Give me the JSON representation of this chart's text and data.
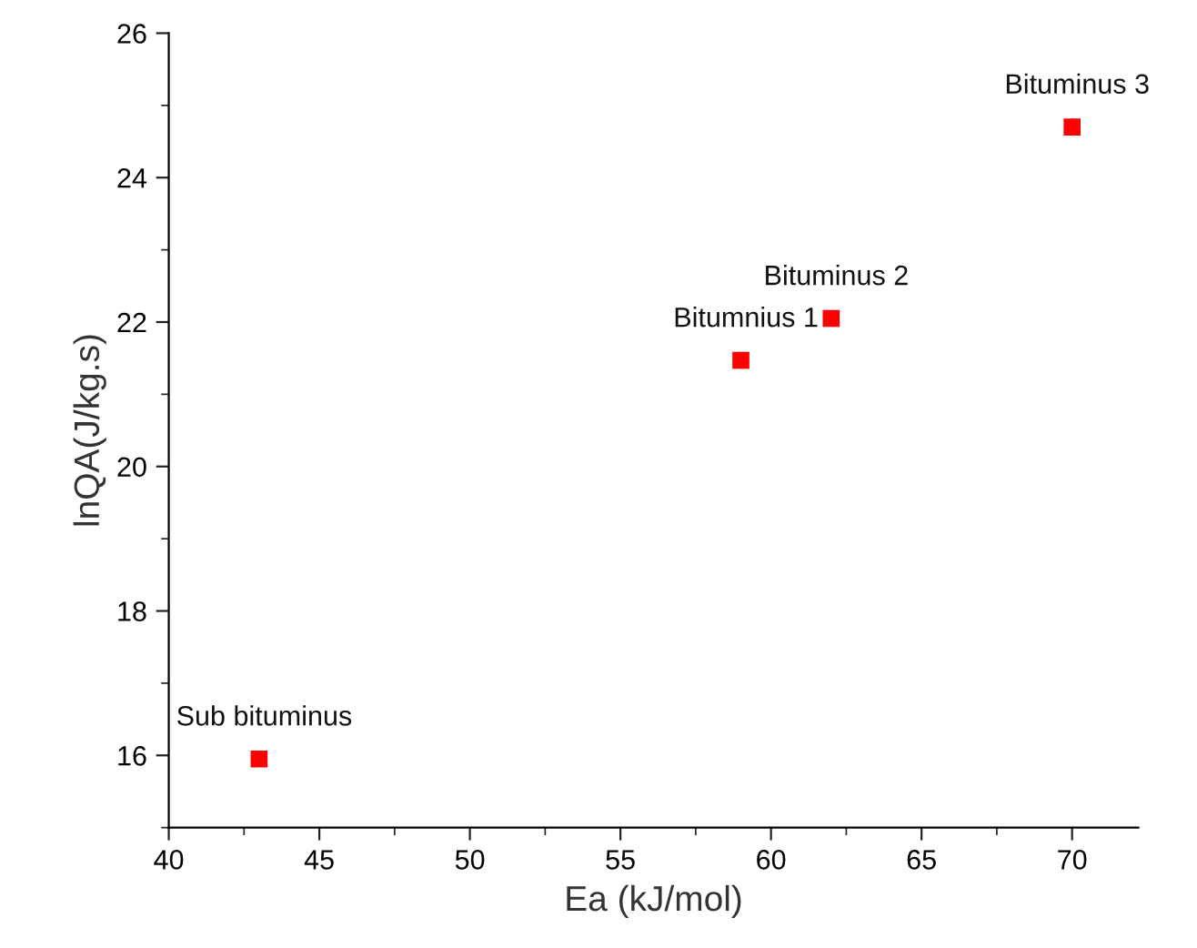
{
  "chart_data": {
    "type": "scatter",
    "xlabel": "Ea (kJ/mol)",
    "ylabel": "lnQA(J/kg.s)",
    "x": [
      43,
      59,
      62,
      70
    ],
    "series": [
      {
        "color": "#ff0000",
        "values": [
          15.95,
          21.47,
          22.05,
          24.7
        ]
      }
    ],
    "annotations": [
      {
        "text": "Sub bituminus",
        "x": 43,
        "y": 15.95
      },
      {
        "text": "Bitumnius 1",
        "x": 59,
        "y": 21.47
      },
      {
        "text": "Bituminus 2",
        "x": 62,
        "y": 22.05
      },
      {
        "text": "Bituminus 3",
        "x": 70,
        "y": 24.7
      }
    ],
    "xlim": [
      40,
      72.2
    ],
    "xticks": [
      40,
      45,
      50,
      55,
      60,
      65,
      70
    ],
    "ylim": [
      15,
      26
    ],
    "yticks": [
      16,
      18,
      20,
      22,
      24,
      26
    ],
    "marker": "square",
    "grid": false
  }
}
